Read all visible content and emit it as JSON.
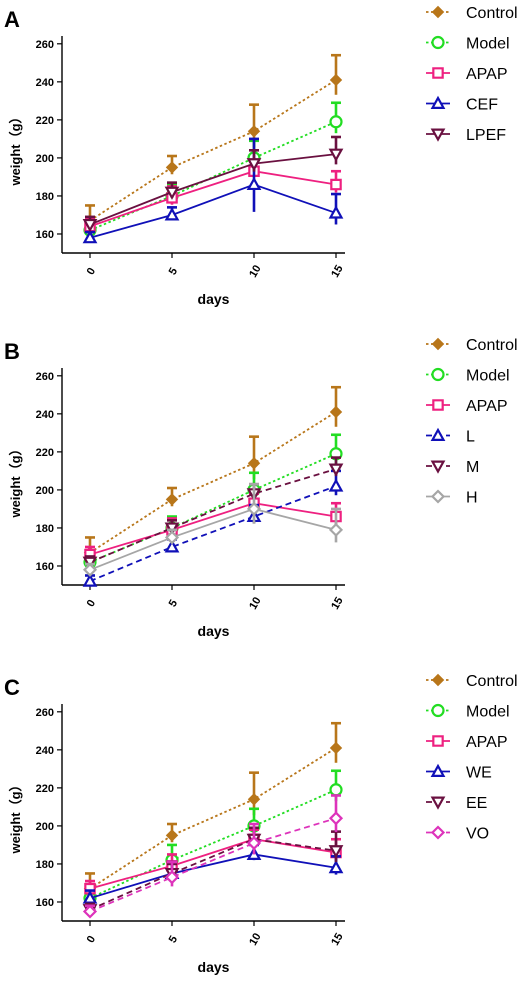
{
  "chart_data": [
    {
      "panel": "A",
      "type": "line",
      "xlabel": "days",
      "ylabel": "weight（g）",
      "x": [
        0,
        5,
        10,
        15
      ],
      "xticks": [
        "0",
        "5",
        "10",
        "15"
      ],
      "yticks": [
        "160",
        "180",
        "200",
        "220",
        "240",
        "260"
      ],
      "ylim": [
        150,
        262
      ],
      "legend_position": "right",
      "series": [
        {
          "name": "Control",
          "values": [
            167,
            195,
            214,
            241
          ],
          "errors": [
            8,
            6,
            14,
            13
          ],
          "color": "#B8761A",
          "marker": "diamond",
          "dash": "dot"
        },
        {
          "name": "Model",
          "values": [
            162,
            180,
            200,
            219
          ],
          "errors": [
            4,
            6,
            9,
            10
          ],
          "color": "#22DD22",
          "marker": "circle",
          "dash": "dot"
        },
        {
          "name": "APAP",
          "values": [
            164,
            179,
            193,
            186
          ],
          "errors": [
            4,
            6,
            5,
            7
          ],
          "color": "#EE2080",
          "marker": "square",
          "dash": "solid"
        },
        {
          "name": "CEF",
          "values": [
            158,
            170,
            186,
            171
          ],
          "errors": [
            3,
            4,
            24,
            10
          ],
          "color": "#1010B8",
          "marker": "triangle-up",
          "dash": "solid"
        },
        {
          "name": "LPEF",
          "values": [
            165,
            182,
            197,
            202
          ],
          "errors": [
            4,
            5,
            7,
            9
          ],
          "color": "#6A1040",
          "marker": "triangle-down",
          "dash": "solid"
        }
      ]
    },
    {
      "panel": "B",
      "type": "line",
      "xlabel": "days",
      "ylabel": "weight（g）",
      "x": [
        0,
        5,
        10,
        15
      ],
      "xticks": [
        "0",
        "5",
        "10",
        "15"
      ],
      "yticks": [
        "160",
        "180",
        "200",
        "220",
        "240",
        "260"
      ],
      "ylim": [
        150,
        262
      ],
      "legend_position": "right",
      "series": [
        {
          "name": "Control",
          "values": [
            167,
            195,
            214,
            241
          ],
          "errors": [
            8,
            6,
            14,
            13
          ],
          "color": "#B8761A",
          "marker": "diamond",
          "dash": "dot"
        },
        {
          "name": "Model",
          "values": [
            162,
            180,
            200,
            219
          ],
          "errors": [
            4,
            6,
            9,
            10
          ],
          "color": "#22DD22",
          "marker": "circle",
          "dash": "dot"
        },
        {
          "name": "APAP",
          "values": [
            166,
            179,
            193,
            186
          ],
          "errors": [
            4,
            6,
            5,
            7
          ],
          "color": "#EE2080",
          "marker": "square",
          "dash": "solid"
        },
        {
          "name": "L",
          "values": [
            152,
            170,
            186,
            202
          ],
          "errors": [
            3,
            4,
            6,
            8
          ],
          "color": "#1010B8",
          "marker": "triangle-up",
          "dash": "dash"
        },
        {
          "name": "M",
          "values": [
            162,
            180,
            198,
            211
          ],
          "errors": [
            3,
            4,
            5,
            6
          ],
          "color": "#6A1040",
          "marker": "triangle-down",
          "dash": "dash"
        },
        {
          "name": "H",
          "values": [
            158,
            175,
            190,
            179
          ],
          "errors": [
            3,
            4,
            13,
            11
          ],
          "color": "#A6A6A6",
          "marker": "diamond-open",
          "dash": "solid"
        }
      ]
    },
    {
      "panel": "C",
      "type": "line",
      "xlabel": "days",
      "ylabel": "weight（g）",
      "x": [
        0,
        5,
        10,
        15
      ],
      "xticks": [
        "0",
        "5",
        "10",
        "15"
      ],
      "yticks": [
        "160",
        "180",
        "200",
        "220",
        "240",
        "260"
      ],
      "ylim": [
        150,
        262
      ],
      "legend_position": "right",
      "series": [
        {
          "name": "Control",
          "values": [
            167,
            195,
            214,
            241
          ],
          "errors": [
            8,
            6,
            14,
            13
          ],
          "color": "#B8761A",
          "marker": "diamond",
          "dash": "dot"
        },
        {
          "name": "Model",
          "values": [
            162,
            182,
            200,
            219
          ],
          "errors": [
            4,
            8,
            9,
            10
          ],
          "color": "#22DD22",
          "marker": "circle",
          "dash": "dot"
        },
        {
          "name": "APAP",
          "values": [
            167,
            179,
            193,
            186
          ],
          "errors": [
            4,
            6,
            5,
            7
          ],
          "color": "#EE2080",
          "marker": "square",
          "dash": "solid"
        },
        {
          "name": "WE",
          "values": [
            162,
            175,
            185,
            178
          ],
          "errors": [
            4,
            6,
            5,
            6
          ],
          "color": "#1010B8",
          "marker": "triangle-up",
          "dash": "solid"
        },
        {
          "name": "EE",
          "values": [
            156,
            175,
            193,
            187
          ],
          "errors": [
            3,
            5,
            6,
            10
          ],
          "color": "#6A1040",
          "marker": "triangle-down",
          "dash": "dash"
        },
        {
          "name": "VO",
          "values": [
            155,
            173,
            191,
            204
          ],
          "errors": [
            3,
            8,
            10,
            12
          ],
          "color": "#DD33BB",
          "marker": "diamond-open",
          "dash": "dash"
        }
      ]
    }
  ]
}
